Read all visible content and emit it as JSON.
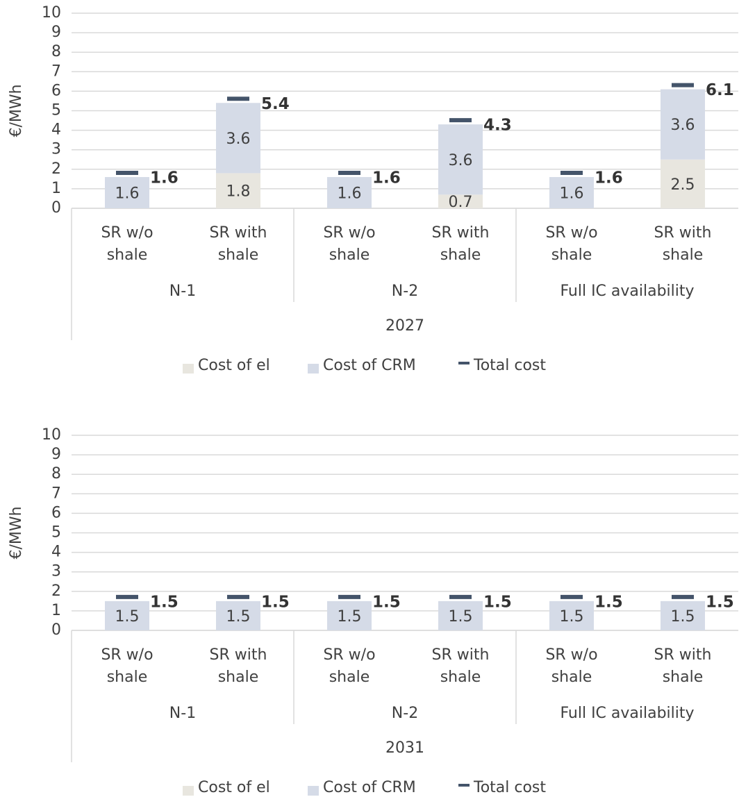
{
  "chart_data": [
    {
      "type": "bar",
      "stacked": true,
      "y_label": "€/MWh",
      "categories": [
        "SR w/o shale",
        "SR with shale",
        "SR w/o shale",
        "SR with shale",
        "SR w/o shale",
        "SR with shale"
      ],
      "groups": [
        "N-1",
        "N-2",
        "Full IC availability"
      ],
      "year": "2027",
      "series": [
        {
          "name": "Cost of el",
          "color": "#e8e6df",
          "values": [
            null,
            1.8,
            null,
            0.7,
            null,
            2.5
          ]
        },
        {
          "name": "Cost of CRM",
          "color": "#d5dbe7",
          "values": [
            1.6,
            3.6,
            1.6,
            3.6,
            1.6,
            3.6
          ]
        },
        {
          "name": "Total cost",
          "color": "#44546a",
          "type": "marker",
          "values": [
            1.6,
            5.4,
            1.6,
            4.3,
            1.6,
            6.1
          ]
        }
      ],
      "ylim": [
        0,
        10
      ],
      "yticks": [
        0,
        1,
        2,
        3,
        4,
        5,
        6,
        7,
        8,
        9,
        10
      ],
      "grid": true
    },
    {
      "type": "bar",
      "stacked": true,
      "y_label": "€/MWh",
      "categories": [
        "SR w/o shale",
        "SR with shale",
        "SR w/o shale",
        "SR with shale",
        "SR w/o shale",
        "SR with shale"
      ],
      "groups": [
        "N-1",
        "N-2",
        "Full IC availability"
      ],
      "year": "2031",
      "series": [
        {
          "name": "Cost of el",
          "color": "#e8e6df",
          "values": [
            null,
            null,
            null,
            null,
            null,
            null
          ]
        },
        {
          "name": "Cost of CRM",
          "color": "#d5dbe7",
          "values": [
            1.5,
            1.5,
            1.5,
            1.5,
            1.5,
            1.5
          ]
        },
        {
          "name": "Total cost",
          "color": "#44546a",
          "type": "marker",
          "values": [
            1.5,
            1.5,
            1.5,
            1.5,
            1.5,
            1.5
          ]
        }
      ],
      "ylim": [
        0,
        10
      ],
      "yticks": [
        0,
        1,
        2,
        3,
        4,
        5,
        6,
        7,
        8,
        9,
        10
      ],
      "grid": true
    }
  ]
}
